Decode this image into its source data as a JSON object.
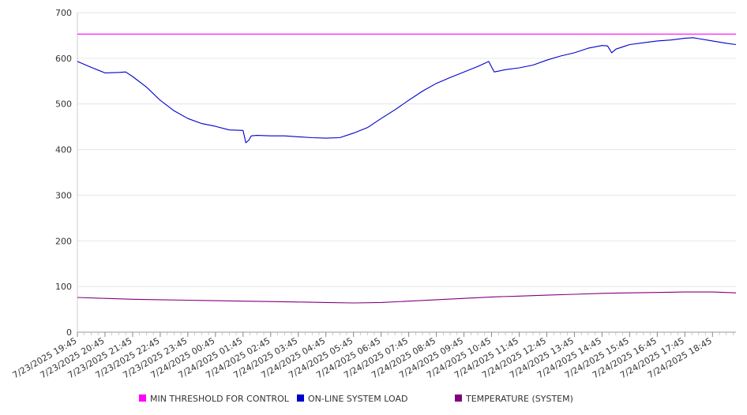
{
  "chart_data": {
    "type": "line",
    "title": "",
    "xlabel": "",
    "ylabel": "",
    "ylim": [
      0,
      700
    ],
    "yticks": [
      "0",
      "100",
      "200",
      "300",
      "400",
      "500",
      "600",
      "700"
    ],
    "xticks": [
      "7/23/2025 19:45",
      "7/23/2025 20:45",
      "7/23/2025 21:45",
      "7/23/2025 22:45",
      "7/23/2025 23:45",
      "7/24/2025 00:45",
      "7/24/2025 01:45",
      "7/24/2025 02:45",
      "7/24/2025 03:45",
      "7/24/2025 04:45",
      "7/24/2025 05:45",
      "7/24/2025 06:45",
      "7/24/2025 07:45",
      "7/24/2025 08:45",
      "7/24/2025 09:45",
      "7/24/2025 10:45",
      "7/24/2025 11:45",
      "7/24/2025 12:45",
      "7/24/2025 13:45",
      "7/24/2025 14:45",
      "7/24/2025 15:45",
      "7/24/2025 16:45",
      "7/24/2025 17:45",
      "7/24/2025 18:45"
    ],
    "grid": true,
    "legend_position": "bottom",
    "series": [
      {
        "name": "MIN THRESHOLD FOR CONTROL",
        "color": "#ff00ff",
        "x": [
          0,
          23.85
        ],
        "y": [
          653,
          653
        ]
      },
      {
        "name": "ON-LINE SYSTEM LOAD",
        "color": "#0000cc",
        "x": [
          0,
          0.5,
          1,
          1.5,
          1.75,
          2,
          2.5,
          3,
          3.5,
          4,
          4.5,
          5,
          5.5,
          6,
          6.1,
          6.2,
          6.3,
          6.5,
          7,
          7.5,
          8,
          8.5,
          9,
          9.5,
          10,
          10.5,
          11,
          11.5,
          12,
          12.5,
          13,
          13.5,
          14,
          14.5,
          14.9,
          15,
          15.1,
          15.5,
          16,
          16.5,
          17,
          17.5,
          18,
          18.5,
          19,
          19.2,
          19.35,
          19.5,
          19.8,
          20,
          20.5,
          21,
          21.5,
          22,
          22.3,
          22.5,
          23,
          23.5,
          23.85
        ],
        "y": [
          593,
          580,
          568,
          569,
          570,
          560,
          537,
          508,
          485,
          468,
          457,
          451,
          443,
          442,
          415,
          420,
          430,
          431,
          430,
          430,
          428,
          426,
          425,
          426,
          436,
          448,
          468,
          487,
          508,
          528,
          545,
          558,
          570,
          582,
          593,
          581,
          570,
          575,
          579,
          585,
          596,
          605,
          612,
          622,
          628,
          627,
          612,
          620,
          626,
          630,
          634,
          638,
          640,
          644,
          645,
          643,
          638,
          633,
          630
        ]
      },
      {
        "name": "TEMPERATURE (SYSTEM)",
        "color": "#800080",
        "x": [
          0,
          1,
          2,
          3,
          4,
          5,
          6,
          7,
          8,
          9,
          10,
          11,
          12,
          13,
          14,
          15,
          16,
          17,
          18,
          19,
          20,
          21,
          22,
          23,
          23.85
        ],
        "y": [
          76,
          74,
          72,
          71,
          70,
          69,
          68,
          67,
          66,
          65,
          64,
          65,
          68,
          71,
          74,
          77,
          79,
          81,
          83,
          85,
          86,
          87,
          88,
          88,
          86
        ]
      }
    ]
  }
}
